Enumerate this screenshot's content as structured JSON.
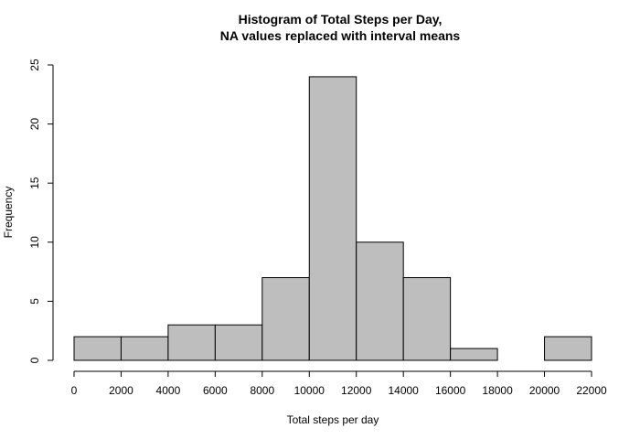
{
  "chart_data": {
    "type": "bar",
    "title": "Histogram of Total Steps per Day,",
    "subtitle": "NA values replaced with interval means",
    "xlabel": "Total steps per day",
    "ylabel": "Frequency",
    "bin_edges": [
      0,
      2000,
      4000,
      6000,
      8000,
      10000,
      12000,
      14000,
      16000,
      18000,
      20000,
      22000
    ],
    "values": [
      2,
      2,
      3,
      3,
      7,
      24,
      10,
      7,
      1,
      0,
      2
    ],
    "xlim": [
      0,
      22000
    ],
    "ylim": [
      0,
      25
    ],
    "xticks": [
      "0",
      "2000",
      "4000",
      "6000",
      "8000",
      "10000",
      "12000",
      "14000",
      "16000",
      "18000",
      "20000",
      "22000"
    ],
    "yticks": [
      "0",
      "5",
      "10",
      "15",
      "20",
      "25"
    ],
    "bar_color": "#bebebe",
    "grid": false
  }
}
